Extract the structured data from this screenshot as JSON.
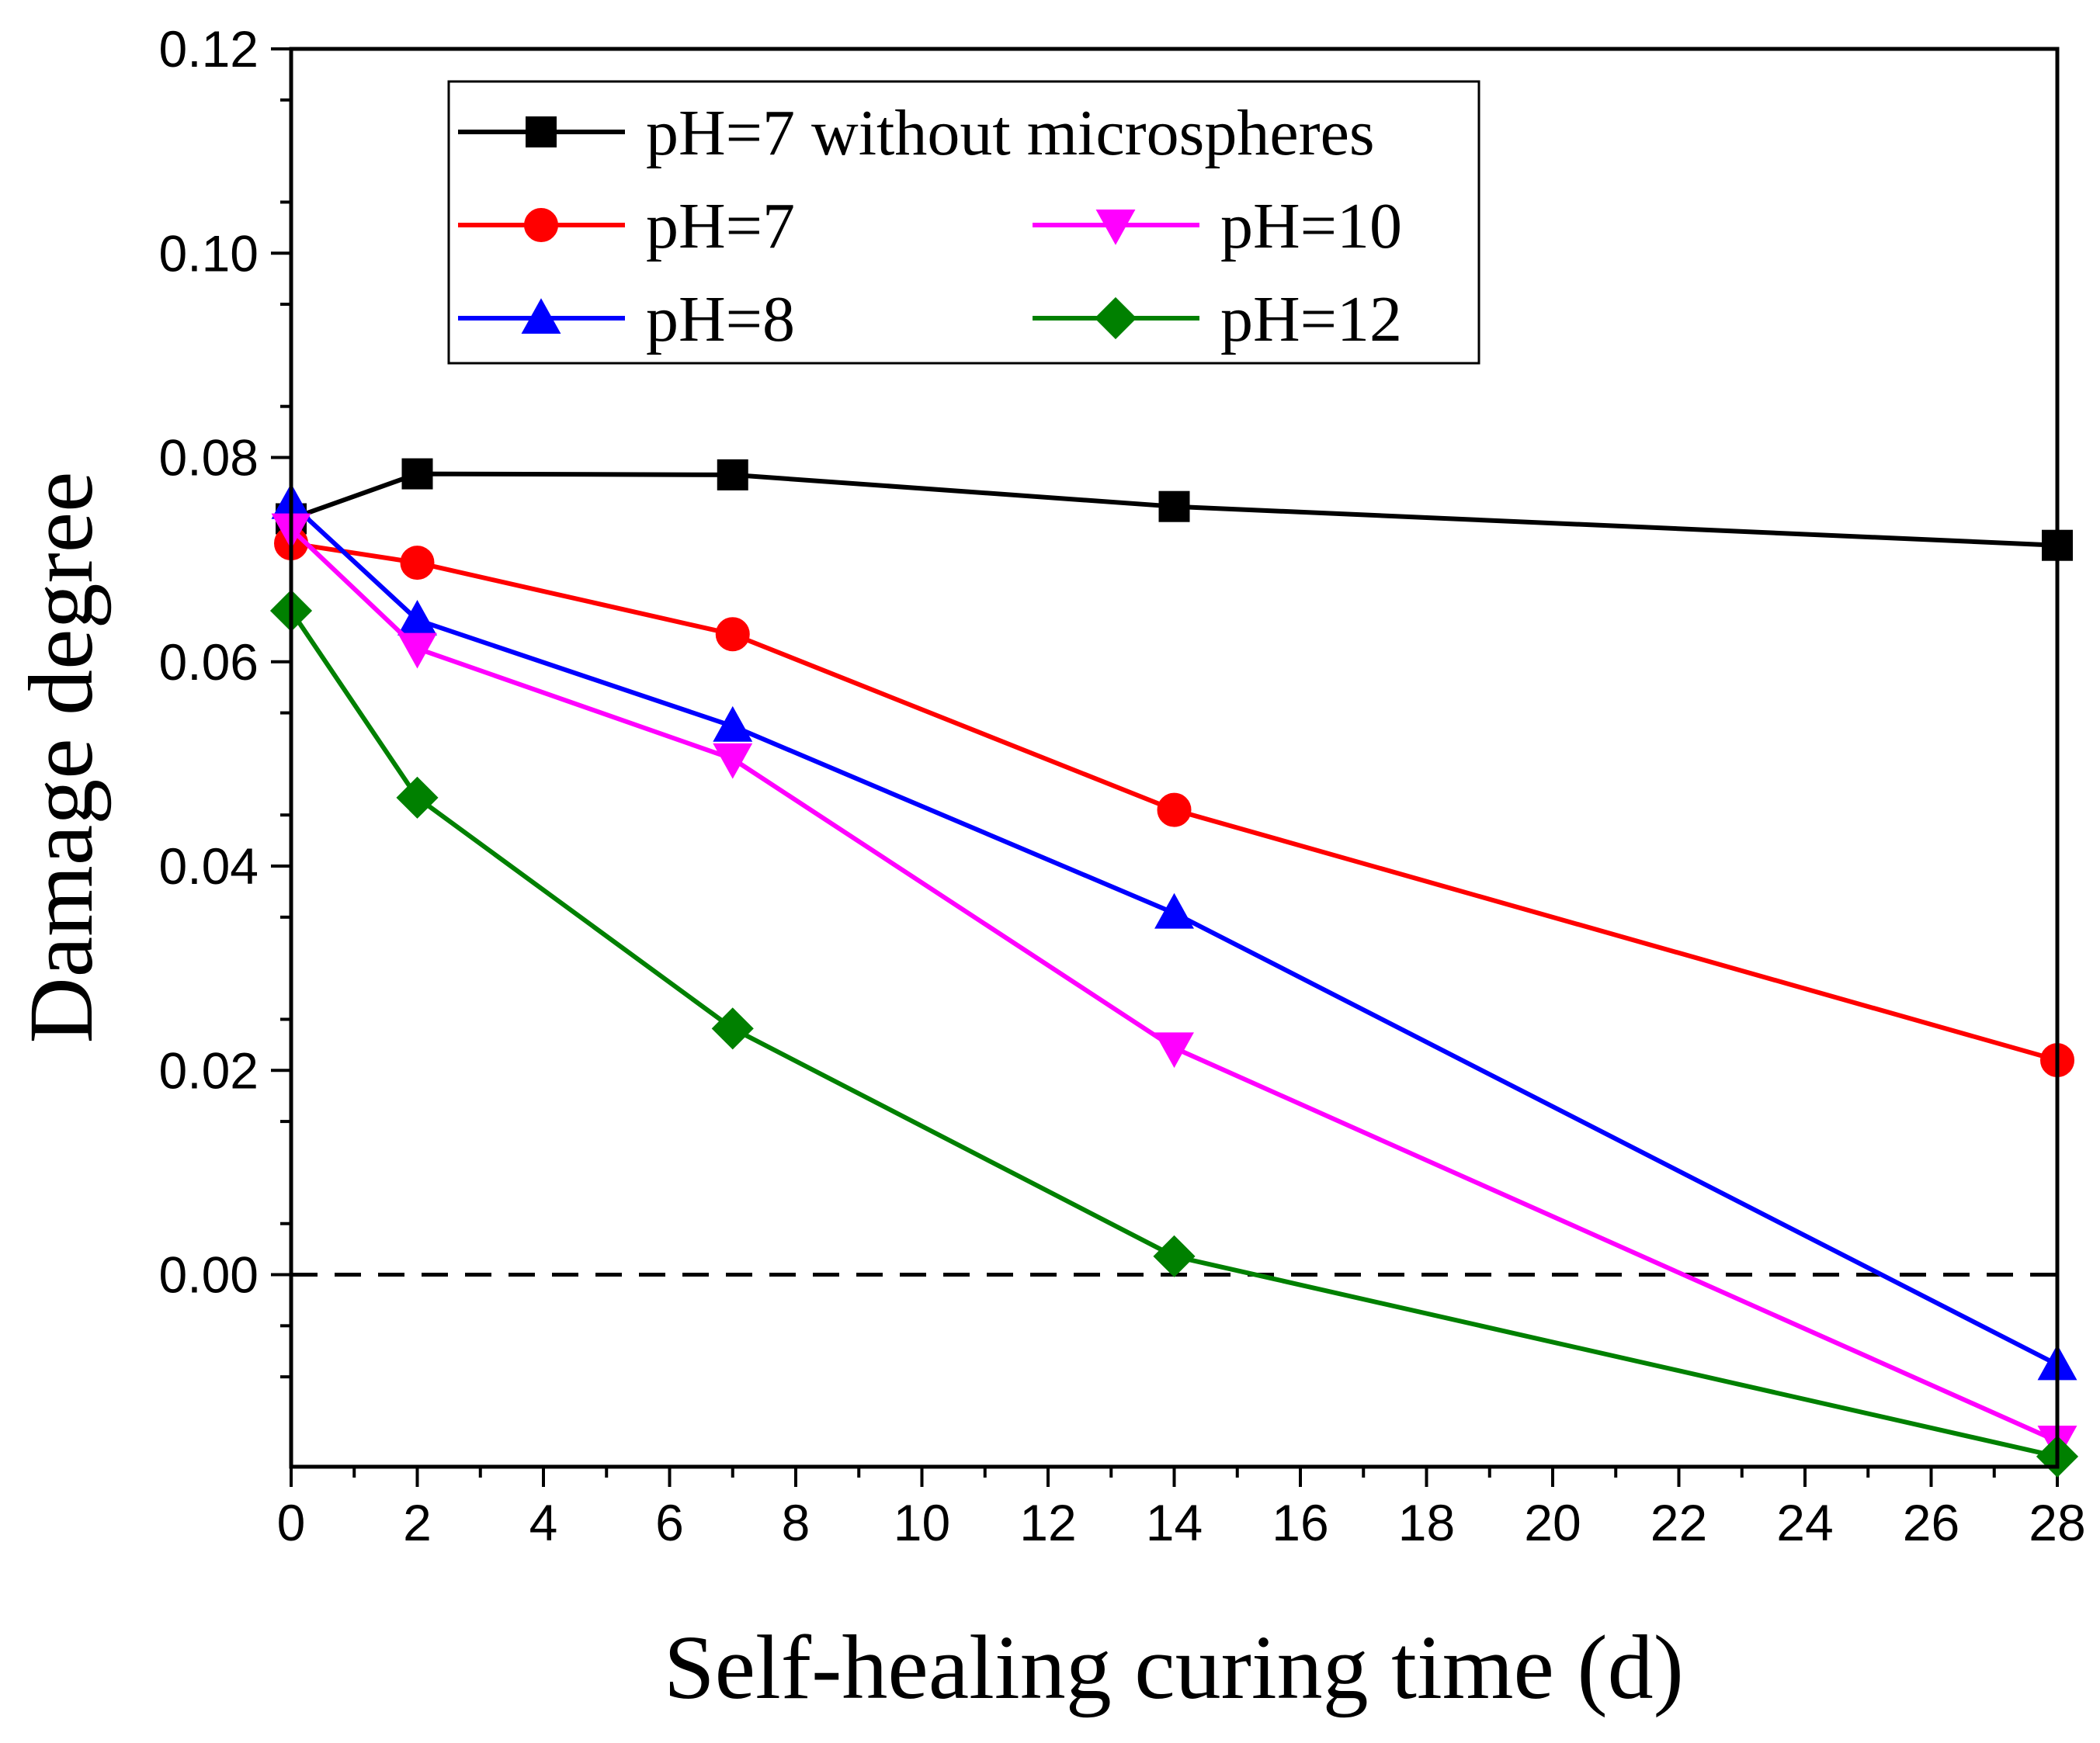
{
  "chart_data": {
    "type": "line",
    "xlabel": "Self-healing curing time (d)",
    "ylabel": "Damage degree",
    "xlim": [
      0,
      28
    ],
    "ylim": [
      -0.0188,
      0.12
    ],
    "xticks": [
      0,
      2,
      4,
      6,
      8,
      10,
      12,
      14,
      16,
      18,
      20,
      22,
      24,
      26,
      28
    ],
    "yticks": [
      0.0,
      0.02,
      0.04,
      0.06,
      0.08,
      0.1,
      0.12
    ],
    "ytick_labels": [
      "0.00",
      "0.02",
      "0.04",
      "0.06",
      "0.08",
      "0.10",
      "0.12"
    ],
    "grid": false,
    "reference_line": {
      "y": 0,
      "style": "dashed"
    },
    "legend_position": "top",
    "x": [
      0,
      2,
      7,
      14,
      28
    ],
    "series": [
      {
        "name": "pH=7 without microspheres",
        "color": "#000000",
        "marker": "square",
        "values": [
          0.074,
          0.0784,
          0.0783,
          0.0752,
          0.0714
        ]
      },
      {
        "name": "pH=7",
        "color": "#ff0000",
        "marker": "circle",
        "values": [
          0.0716,
          0.0697,
          0.0627,
          0.0455,
          0.021
        ]
      },
      {
        "name": "pH=8",
        "color": "#0000ff",
        "marker": "triangle-up",
        "values": [
          0.0755,
          0.0641,
          0.0537,
          0.0354,
          -0.0088
        ]
      },
      {
        "name": "pH=10",
        "color": "#ff00ff",
        "marker": "triangle-down",
        "values": [
          0.073,
          0.0613,
          0.0505,
          0.0222,
          -0.0163
        ]
      },
      {
        "name": "pH=12",
        "color": "#008000",
        "marker": "diamond",
        "values": [
          0.065,
          0.0467,
          0.0241,
          0.0018,
          -0.0178
        ]
      }
    ]
  }
}
